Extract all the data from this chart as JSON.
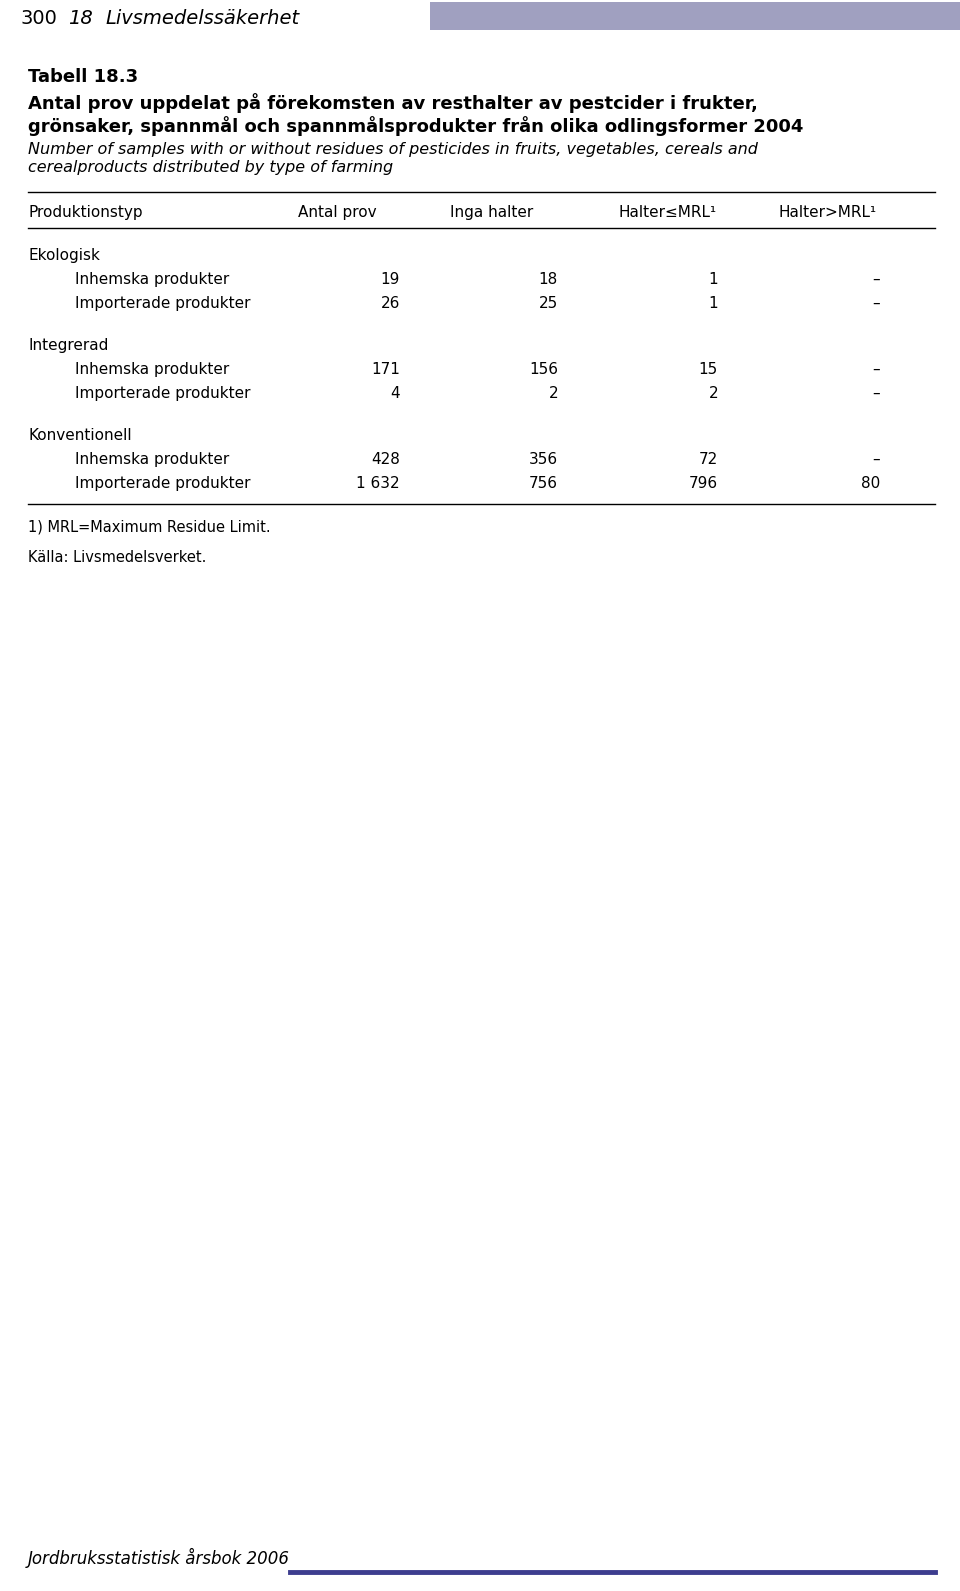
{
  "header_number": "300",
  "header_chapter": "18",
  "header_title": "Livsmedelssäkerhet",
  "header_bar_color": "#a0a0c0",
  "table_number": "Tabell 18.3",
  "title_sv_line1": "Antal prov uppdelat på förekomsten av resthalter av pestcider i frukter,",
  "title_sv_line2": "grönsaker, spannmål och spannmålsprodukter från olika odlingsformer 2004",
  "title_en_line1": "Number of samples with or without residues of pesticides in fruits, vegetables, cereals and",
  "title_en_line2": "cerealproducts distributed by type of farming",
  "col_headers": [
    "Produktionstyp",
    "Antal prov",
    "Inga halter",
    "Halter≤MRL¹",
    "Halter>MRL¹"
  ],
  "sections": [
    {
      "section_name": "Ekologisk",
      "rows": [
        {
          "name": "Inhemska produkter",
          "antal": "19",
          "inga": "18",
          "leq": "1",
          "gt": "–"
        },
        {
          "name": "Importerade produkter",
          "antal": "26",
          "inga": "25",
          "leq": "1",
          "gt": "–"
        }
      ]
    },
    {
      "section_name": "Integrerad",
      "rows": [
        {
          "name": "Inhemska produkter",
          "antal": "171",
          "inga": "156",
          "leq": "15",
          "gt": "–"
        },
        {
          "name": "Importerade produkter",
          "antal": "4",
          "inga": "2",
          "leq": "2",
          "gt": "–"
        }
      ]
    },
    {
      "section_name": "Konventionell",
      "rows": [
        {
          "name": "Inhemska produkter",
          "antal": "428",
          "inga": "356",
          "leq": "72",
          "gt": "–"
        },
        {
          "name": "Importerade produkter",
          "antal": "1 632",
          "inga": "756",
          "leq": "796",
          "gt": "80"
        }
      ]
    }
  ],
  "footnote": "1) MRL=Maximum Residue Limit.",
  "source": "Källa: Livsmedelsverket.",
  "footer_text": "Jordbruksstatistisk årsbok 2006",
  "footer_line_color": "#3d3d8f",
  "bg_color": "#ffffff",
  "text_color": "#000000",
  "line_color": "#000000"
}
